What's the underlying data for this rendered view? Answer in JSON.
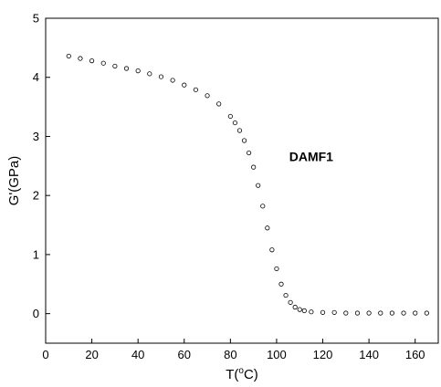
{
  "chart_data": {
    "type": "scatter",
    "title": "",
    "xlabel": {
      "main": "T(",
      "sup": "o",
      "tail": "C)"
    },
    "ylabel": "G'(GPa)",
    "xlim": [
      0,
      170
    ],
    "ylim": [
      -0.5,
      5
    ],
    "xticks": [
      0,
      20,
      40,
      60,
      80,
      100,
      120,
      140,
      160
    ],
    "yticks": [
      0,
      1,
      2,
      3,
      4,
      5
    ],
    "grid": false,
    "marker": "open-circle",
    "color": "#000000",
    "annotation": {
      "text": "DAMF1",
      "x": 115,
      "y": 2.58
    },
    "series": [
      {
        "x": [
          10,
          15,
          20,
          25,
          30,
          35,
          40,
          45,
          50,
          55,
          60,
          65,
          70,
          75,
          80,
          82,
          84,
          86,
          88,
          90,
          92,
          94,
          96,
          98,
          100,
          102,
          104,
          106,
          108,
          110,
          112,
          115,
          120,
          125,
          130,
          135,
          140,
          145,
          150,
          155,
          160,
          165
        ],
        "y": [
          4.36,
          4.32,
          4.28,
          4.24,
          4.19,
          4.15,
          4.11,
          4.06,
          4.01,
          3.95,
          3.87,
          3.79,
          3.69,
          3.55,
          3.34,
          3.23,
          3.1,
          2.93,
          2.72,
          2.48,
          2.17,
          1.82,
          1.45,
          1.08,
          0.76,
          0.5,
          0.31,
          0.19,
          0.11,
          0.07,
          0.05,
          0.03,
          0.02,
          0.02,
          0.01,
          0.01,
          0.01,
          0.01,
          0.01,
          0.01,
          0.01,
          0.01
        ]
      }
    ]
  }
}
